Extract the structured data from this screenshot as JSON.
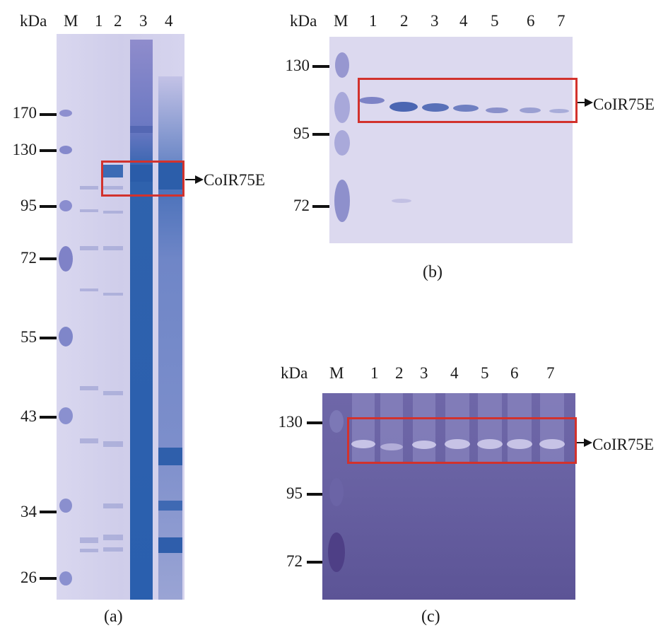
{
  "panel_a": {
    "caption": "(a)",
    "header_unit": "kDa",
    "lanes": [
      "M",
      "1",
      "2",
      "3",
      "4"
    ],
    "markers": [
      "170",
      "130",
      "95",
      "72",
      "55",
      "43",
      "34",
      "26"
    ],
    "band_label": "CoIR75E"
  },
  "panel_b": {
    "caption": "(b)",
    "header_unit": "kDa",
    "lanes": [
      "M",
      "1",
      "2",
      "3",
      "4",
      "5",
      "6",
      "7"
    ],
    "markers": [
      "130",
      "95",
      "72"
    ],
    "band_label": "CoIR75E"
  },
  "panel_c": {
    "caption": "(c)",
    "header_unit": "kDa",
    "lanes": [
      "M",
      "1",
      "2",
      "3",
      "4",
      "5",
      "6",
      "7"
    ],
    "markers": [
      "130",
      "95",
      "72"
    ],
    "band_label": "CoIR75E"
  },
  "colors": {
    "gel_light": "#cfcdea",
    "gel_stain": "#2f62ad",
    "gel_dark": "#5e5596",
    "highlight_box": "#d2322d"
  }
}
